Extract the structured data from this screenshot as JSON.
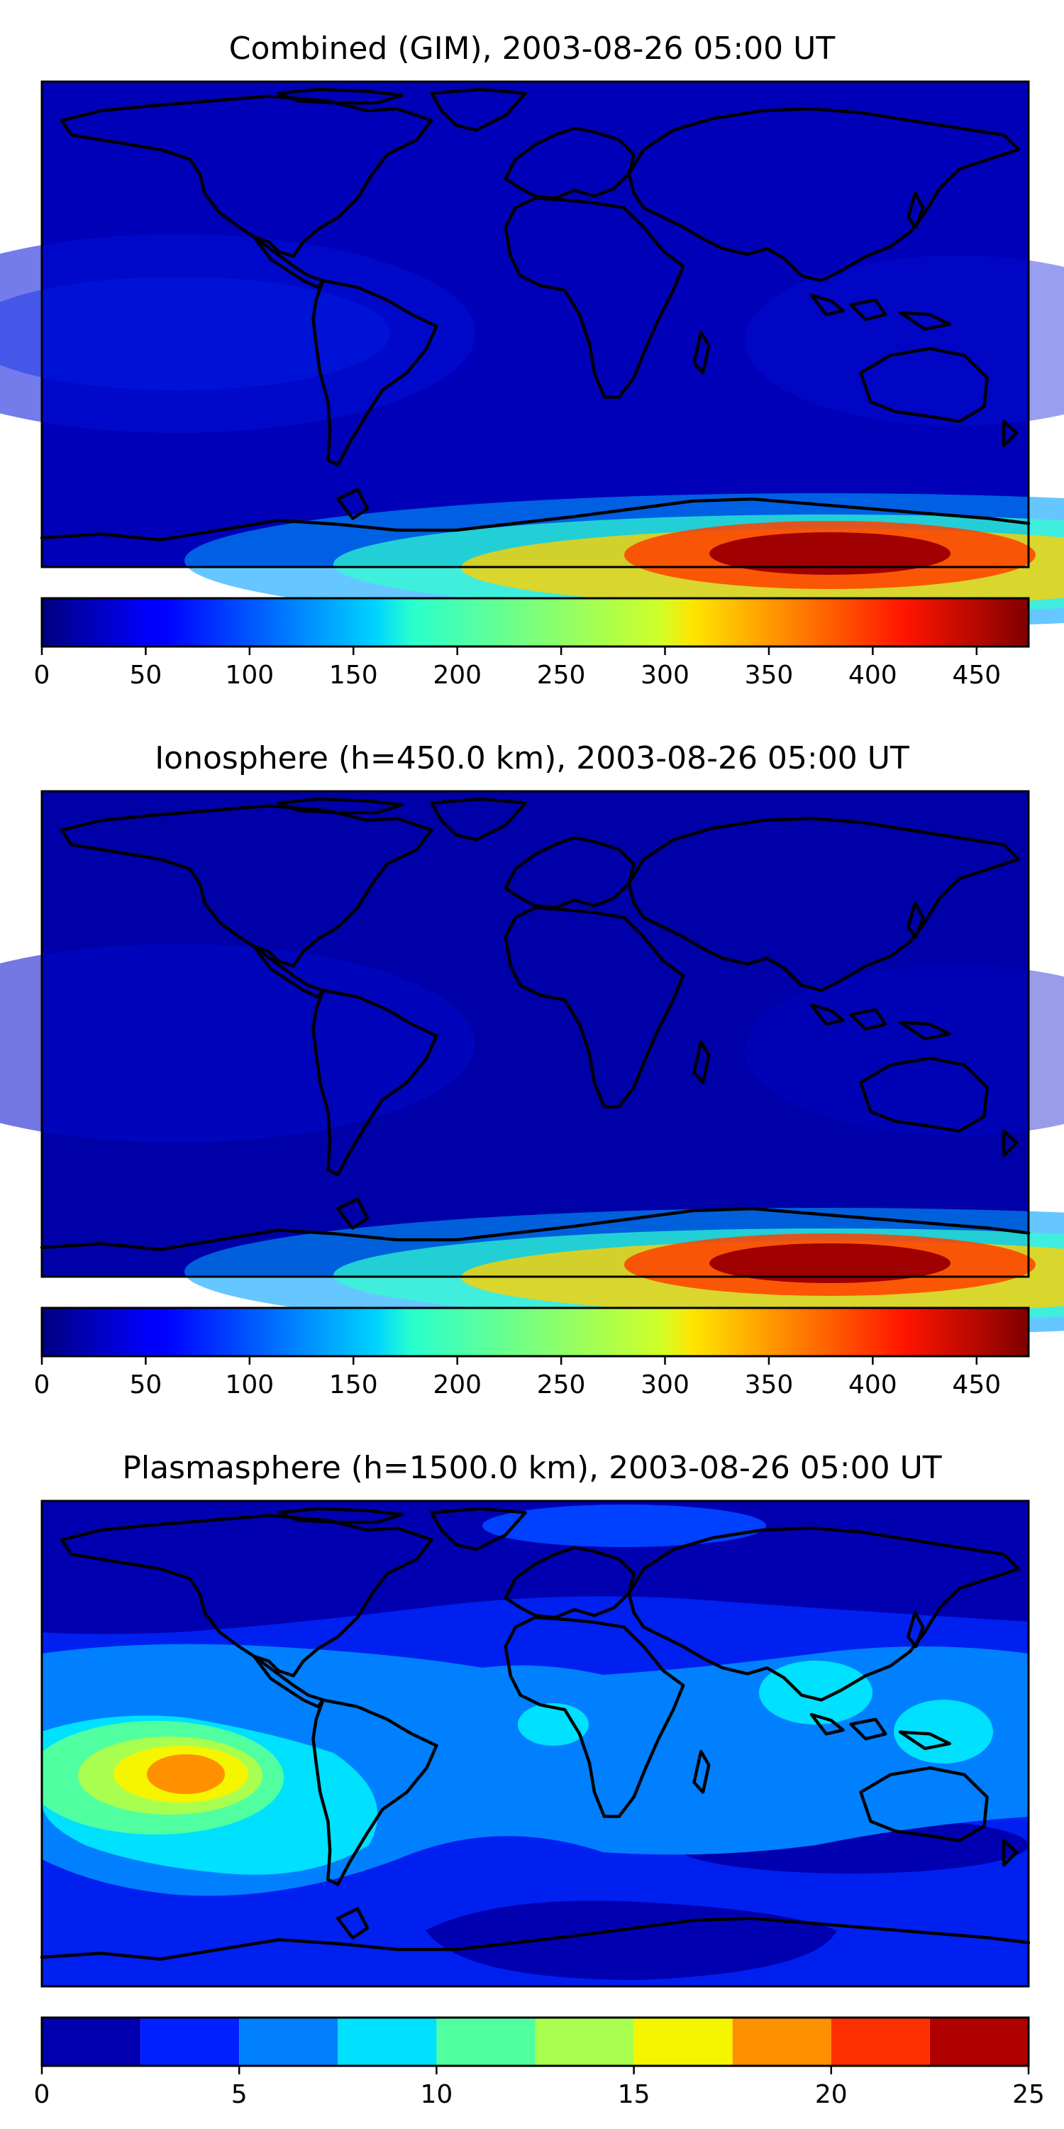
{
  "chart_data": [
    {
      "type": "heatmap",
      "title": "Combined (GIM), 2003-08-26 05:00 UT",
      "colormap": "jet",
      "colorbar": {
        "min": 0,
        "max": 475,
        "ticks": [
          "0",
          "50",
          "100",
          "150",
          "200",
          "250",
          "300",
          "350",
          "400",
          "450"
        ],
        "style": "continuous"
      },
      "features": [
        {
          "kind": "background",
          "value": 30
        },
        {
          "kind": "enhancement",
          "lon": -140,
          "lat": 20,
          "value": 55
        },
        {
          "kind": "southern_polar_band",
          "peak_lon": 95,
          "peak_lat": -84,
          "peak_value": 460,
          "edge_value": 300
        }
      ]
    },
    {
      "type": "heatmap",
      "title": "Ionosphere  (h=450.0 km), 2003-08-26 05:00 UT",
      "colormap": "jet",
      "colorbar": {
        "min": 0,
        "max": 475,
        "ticks": [
          "0",
          "50",
          "100",
          "150",
          "200",
          "250",
          "300",
          "350",
          "400",
          "450"
        ],
        "style": "continuous"
      },
      "features": [
        {
          "kind": "background",
          "value": 22
        },
        {
          "kind": "enhancement",
          "lon": -140,
          "lat": 20,
          "value": 40
        },
        {
          "kind": "southern_polar_band",
          "peak_lon": 95,
          "peak_lat": -85,
          "peak_value": 455,
          "edge_value": 300
        }
      ]
    },
    {
      "type": "heatmap",
      "title": "Plasmasphere (h=1500.0 km), 2003-08-26 05:00 UT",
      "colormap": "jet",
      "colorbar": {
        "min": 0,
        "max": 25,
        "ticks": [
          "0",
          "5",
          "10",
          "15",
          "20",
          "25"
        ],
        "style": "discrete",
        "levels": [
          0,
          2.5,
          5,
          7.5,
          10,
          12.5,
          15,
          17.5,
          20,
          22.5,
          25
        ]
      },
      "features": [
        {
          "kind": "maximum",
          "lon": -135,
          "lat": 5,
          "value": 18
        },
        {
          "kind": "region",
          "lon": 105,
          "lat": 20,
          "value": 9
        },
        {
          "kind": "region",
          "lon": 130,
          "lat": 15,
          "value": 9
        },
        {
          "kind": "region",
          "lon": 5,
          "lat": 10,
          "value": 8
        },
        {
          "kind": "region",
          "lon": -60,
          "lat": -15,
          "value": 9
        },
        {
          "kind": "minimum",
          "lon": 30,
          "lat": -75,
          "value": 2
        },
        {
          "kind": "minimum",
          "lon": 60,
          "lat": 75,
          "value": 3
        }
      ]
    }
  ]
}
